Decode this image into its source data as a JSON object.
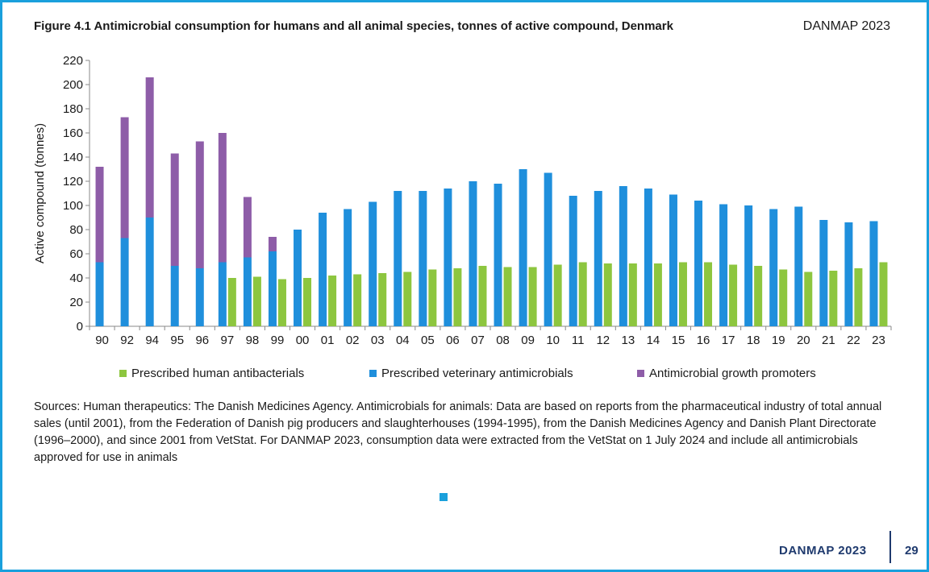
{
  "header": {
    "title": "Figure 4.1 Antimicrobial consumption for humans and all animal species, tonnes of active compound, Denmark",
    "brand": "DANMAP 2023"
  },
  "chart_data": {
    "type": "bar",
    "stacked": true,
    "ylabel": "Active compound (tonnes)",
    "ylim": [
      0,
      220
    ],
    "yticks": [
      0,
      20,
      40,
      60,
      80,
      100,
      120,
      140,
      160,
      180,
      200,
      220
    ],
    "grid": false,
    "legend_position": "bottom",
    "categories": [
      "90",
      "92",
      "94",
      "95",
      "96",
      "97",
      "98",
      "99",
      "00",
      "01",
      "02",
      "03",
      "04",
      "05",
      "06",
      "07",
      "08",
      "09",
      "10",
      "11",
      "12",
      "13",
      "14",
      "15",
      "16",
      "17",
      "18",
      "19",
      "20",
      "21",
      "22",
      "23"
    ],
    "series": [
      {
        "name": "Prescribed human antibacterials",
        "color": "#8dc63f",
        "values": [
          null,
          null,
          null,
          null,
          null,
          40,
          41,
          39,
          40,
          42,
          43,
          44,
          45,
          47,
          48,
          50,
          49,
          49,
          51,
          53,
          52,
          52,
          52,
          53,
          53,
          51,
          50,
          47,
          45,
          46,
          48,
          53
        ]
      },
      {
        "name": "Prescribed veterinary antimicrobials",
        "color": "#1f8fdc",
        "values": [
          53,
          73,
          90,
          50,
          48,
          53,
          57,
          62,
          80,
          94,
          97,
          103,
          112,
          112,
          114,
          120,
          118,
          130,
          127,
          108,
          112,
          116,
          114,
          109,
          104,
          101,
          100,
          97,
          99,
          88,
          86,
          87
        ]
      },
      {
        "name": "Antimicrobial growth promoters",
        "color": "#8e5da8",
        "values": [
          79,
          100,
          116,
          93,
          105,
          107,
          50,
          12,
          null,
          null,
          null,
          null,
          null,
          null,
          null,
          null,
          null,
          null,
          null,
          null,
          null,
          null,
          null,
          null,
          null,
          null,
          null,
          null,
          null,
          null,
          null,
          null
        ]
      }
    ]
  },
  "sources_text": "Sources: Human therapeutics: The Danish Medicines Agency. Antimicrobials for animals: Data are based on reports from the pharmaceutical industry of total annual sales (until 2001), from the Federation of Danish pig producers and slaughterhouses (1994-1995), from the Danish Medicines Agency and Danish Plant Directorate (1996–2000), and since 2001 from VetStat. For DANMAP 2023, consumption data were extracted from the VetStat on 1 July 2024 and include all antimicrobials approved for use in animals",
  "footer": {
    "brand": "DANMAP 2023",
    "page_number": "29"
  }
}
